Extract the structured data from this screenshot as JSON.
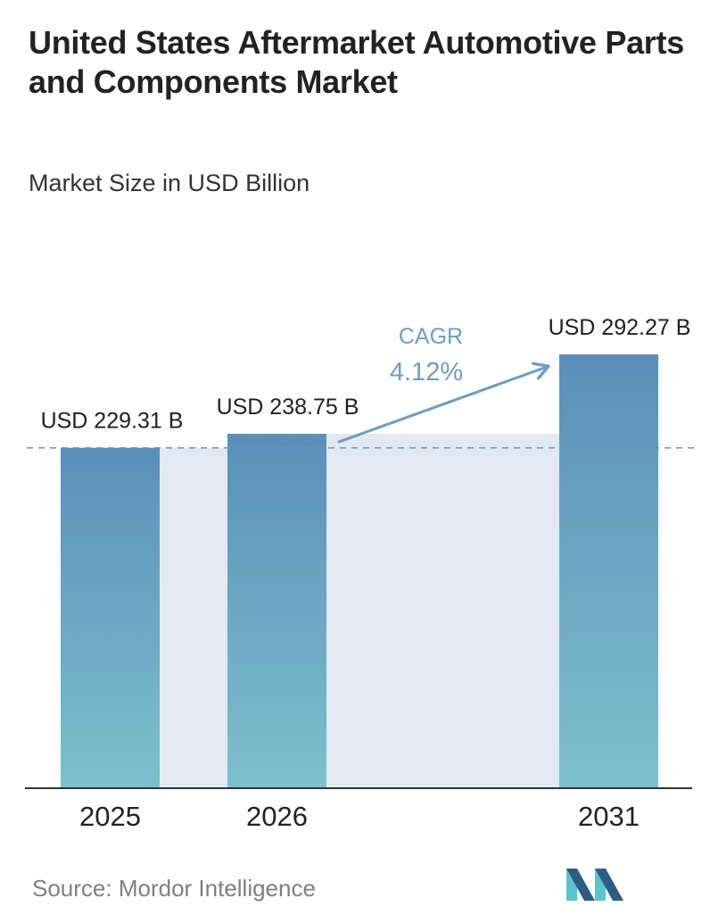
{
  "title": "United States Aftermarket Automotive Parts and Components Market",
  "subtitle": "Market Size in USD Billion",
  "source": "Source:  Mordor Intelligence",
  "colors": {
    "bar_top": "#5b8fba",
    "bar_bottom": "#7dc0cc",
    "band": "#e2e9f2",
    "dashed": "#6e93b3",
    "cagr": "#6f9cc2",
    "axis": "#333333",
    "logo_dark": "#2c5c83",
    "logo_light": "#5cc2cc"
  },
  "cagr": {
    "label": "CAGR",
    "value": "4.12%"
  },
  "logo_icon": "mordor-intelligence-logo-icon",
  "chart_data": {
    "type": "bar",
    "categories": [
      "2025",
      "2026",
      "2031"
    ],
    "values": [
      229.31,
      238.75,
      292.27
    ],
    "data_labels": [
      "USD 229.31 B",
      "USD 238.75 B",
      "USD 292.27 B"
    ],
    "unit": "USD Billion",
    "ylim": [
      0,
      310
    ],
    "grid": false,
    "legend": "none"
  }
}
